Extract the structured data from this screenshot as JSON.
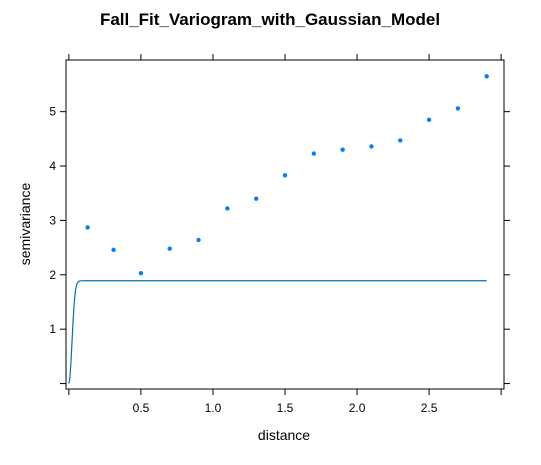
{
  "chart_data": {
    "type": "scatter",
    "title": "Fall_Fit_Variogram_with_Gaussian_Model",
    "xlabel": "distance",
    "ylabel": "semivariance",
    "xlim": [
      -0.02,
      3.02
    ],
    "ylim": [
      -0.1,
      5.95
    ],
    "x_ticks": [
      0.5,
      1.0,
      1.5,
      2.0,
      2.5
    ],
    "x_tick_labels": [
      "0.5",
      "1.0",
      "1.5",
      "2.0",
      "2.5"
    ],
    "y_ticks": [
      1,
      2,
      3,
      4,
      5
    ],
    "y_tick_labels": [
      "1",
      "2",
      "3",
      "4",
      "5"
    ],
    "grid": false,
    "colors": {
      "points": "#0080ff",
      "model_line": "#0072b2",
      "axes": "#000000"
    },
    "series": [
      {
        "kind": "points",
        "x": [
          0.13,
          0.31,
          0.5,
          0.7,
          0.9,
          1.1,
          1.3,
          1.5,
          1.7,
          1.9,
          2.1,
          2.3,
          2.5,
          2.7,
          2.9
        ],
        "y": [
          2.87,
          2.46,
          2.03,
          2.48,
          2.64,
          3.22,
          3.4,
          3.83,
          4.23,
          4.3,
          4.36,
          4.47,
          4.85,
          5.06,
          5.65
        ]
      },
      {
        "kind": "model-line",
        "model": "gaussian",
        "nugget": 0.0,
        "sill": 1.89,
        "range": 0.03,
        "x_max": 2.9
      }
    ]
  }
}
